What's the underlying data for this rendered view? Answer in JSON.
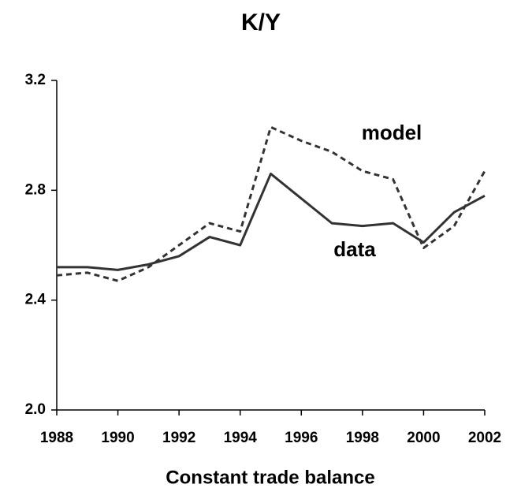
{
  "chart_data": {
    "type": "line",
    "title": "K/Y",
    "x_label": "Constant trade balance",
    "x": [
      1988,
      1989,
      1990,
      1991,
      1992,
      1993,
      1994,
      1995,
      1996,
      1997,
      1998,
      1999,
      2000,
      2001,
      2002
    ],
    "series": [
      {
        "name": "data",
        "color": "#333333",
        "style": "solid",
        "values": [
          2.52,
          2.52,
          2.51,
          2.53,
          2.56,
          2.63,
          2.6,
          2.86,
          2.77,
          2.68,
          2.67,
          2.68,
          2.61,
          2.72,
          2.78
        ]
      },
      {
        "name": "model",
        "color": "#333333",
        "style": "dashed",
        "values": [
          2.49,
          2.5,
          2.47,
          2.52,
          2.6,
          2.68,
          2.65,
          3.03,
          2.98,
          2.94,
          2.87,
          2.84,
          2.59,
          2.67,
          2.87
        ]
      }
    ],
    "xlim": [
      1988,
      2002
    ],
    "xticks": [
      1988,
      1990,
      1992,
      1994,
      1996,
      1998,
      2000,
      2002
    ],
    "ylim": [
      2.0,
      3.2
    ],
    "yticks": [
      {
        "value": 2.0,
        "label": "2.0"
      },
      2.4,
      2.8,
      3.2
    ],
    "grid": false
  }
}
